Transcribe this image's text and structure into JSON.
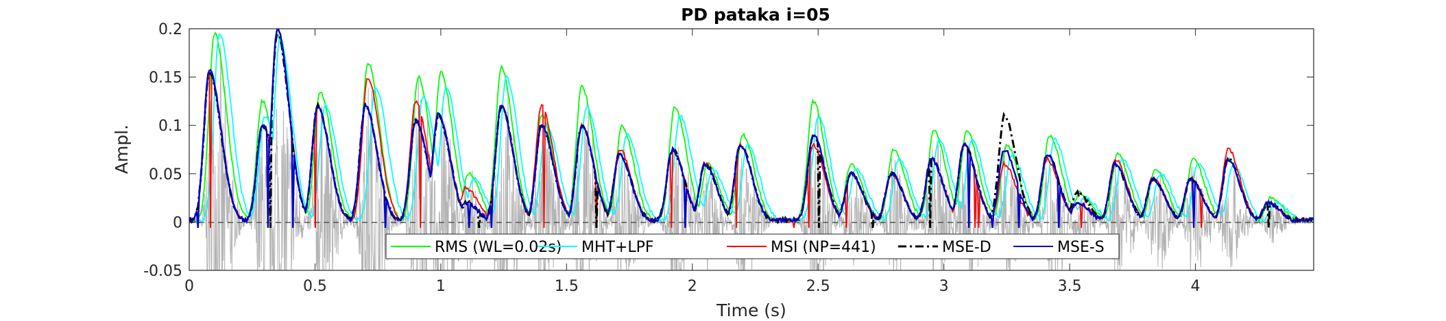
{
  "chart_data": {
    "type": "line",
    "title": "PD pataka i=05",
    "xlabel": "Time (s)",
    "ylabel": "Ampl.",
    "xlim": [
      0,
      4.47
    ],
    "ylim": [
      -0.05,
      0.2
    ],
    "xticks": [
      0,
      0.5,
      1,
      1.5,
      2,
      2.5,
      3,
      3.5,
      4
    ],
    "xtick_labels": [
      "0",
      "0.5",
      "1",
      "1.5",
      "2",
      "2.5",
      "3",
      "3.5",
      "4"
    ],
    "yticks": [
      -0.05,
      0,
      0.05,
      0.1,
      0.15,
      0.2
    ],
    "ytick_labels": [
      "-0.05",
      "0",
      "0.05",
      "0.1",
      "0.15",
      "0.2"
    ],
    "grid": false,
    "legend_location": "bottom-center",
    "zero_line": true,
    "series": [
      {
        "name": "RMS (WL=0.02s)",
        "color": "#00ff00",
        "style": "solid",
        "peaks": [
          [
            0.1,
            0.195
          ],
          [
            0.29,
            0.125
          ],
          [
            0.35,
            0.195
          ],
          [
            0.52,
            0.135
          ],
          [
            0.71,
            0.165
          ],
          [
            0.91,
            0.15
          ],
          [
            1.0,
            0.155
          ],
          [
            1.11,
            0.05
          ],
          [
            1.24,
            0.16
          ],
          [
            1.4,
            0.11
          ],
          [
            1.56,
            0.14
          ],
          [
            1.72,
            0.1
          ],
          [
            1.93,
            0.12
          ],
          [
            2.06,
            0.06
          ],
          [
            2.2,
            0.09
          ],
          [
            2.48,
            0.125
          ],
          [
            2.63,
            0.06
          ],
          [
            2.8,
            0.075
          ],
          [
            2.96,
            0.095
          ],
          [
            3.09,
            0.095
          ],
          [
            3.25,
            0.08
          ],
          [
            3.42,
            0.09
          ],
          [
            3.54,
            0.03
          ],
          [
            3.69,
            0.07
          ],
          [
            3.84,
            0.055
          ],
          [
            3.99,
            0.065
          ],
          [
            4.13,
            0.065
          ],
          [
            4.3,
            0.025
          ]
        ]
      },
      {
        "name": "MHT+LPF",
        "color": "#00ffff",
        "style": "solid",
        "peaks": [
          [
            0.12,
            0.195
          ],
          [
            0.3,
            0.11
          ],
          [
            0.36,
            0.19
          ],
          [
            0.54,
            0.12
          ],
          [
            0.74,
            0.14
          ],
          [
            0.93,
            0.13
          ],
          [
            1.02,
            0.14
          ],
          [
            1.13,
            0.045
          ],
          [
            1.26,
            0.15
          ],
          [
            1.42,
            0.1
          ],
          [
            1.58,
            0.12
          ],
          [
            1.74,
            0.09
          ],
          [
            1.95,
            0.11
          ],
          [
            2.08,
            0.055
          ],
          [
            2.22,
            0.08
          ],
          [
            2.5,
            0.11
          ],
          [
            2.65,
            0.055
          ],
          [
            2.82,
            0.065
          ],
          [
            2.98,
            0.085
          ],
          [
            3.11,
            0.085
          ],
          [
            3.27,
            0.07
          ],
          [
            3.44,
            0.085
          ],
          [
            3.56,
            0.025
          ],
          [
            3.71,
            0.065
          ],
          [
            3.86,
            0.05
          ],
          [
            4.01,
            0.06
          ],
          [
            4.15,
            0.06
          ],
          [
            4.32,
            0.02
          ]
        ]
      },
      {
        "name": "MSI (NP=441)",
        "color": "#ff0000",
        "style": "solid",
        "peaks": [
          [
            0.08,
            0.155
          ],
          [
            0.29,
            0.1
          ],
          [
            0.35,
            0.2
          ],
          [
            0.51,
            0.12
          ],
          [
            0.71,
            0.15
          ],
          [
            0.9,
            0.125
          ],
          [
            0.99,
            0.11
          ],
          [
            1.1,
            0.035
          ],
          [
            1.24,
            0.12
          ],
          [
            1.4,
            0.12
          ],
          [
            1.56,
            0.1
          ],
          [
            1.71,
            0.075
          ],
          [
            1.92,
            0.075
          ],
          [
            2.05,
            0.06
          ],
          [
            2.19,
            0.08
          ],
          [
            2.48,
            0.08
          ],
          [
            2.63,
            0.05
          ],
          [
            2.79,
            0.05
          ],
          [
            2.95,
            0.065
          ],
          [
            3.08,
            0.08
          ],
          [
            3.24,
            0.06
          ],
          [
            3.41,
            0.065
          ],
          [
            3.53,
            0.02
          ],
          [
            3.68,
            0.065
          ],
          [
            3.83,
            0.045
          ],
          [
            3.98,
            0.045
          ],
          [
            4.13,
            0.075
          ],
          [
            4.29,
            0.02
          ]
        ]
      },
      {
        "name": "MSE-D",
        "color": "#000000",
        "style": "dashdot",
        "peaks": [
          [
            0.08,
            0.155
          ],
          [
            0.29,
            0.1
          ],
          [
            0.35,
            0.195
          ],
          [
            0.51,
            0.12
          ],
          [
            0.7,
            0.12
          ],
          [
            0.9,
            0.105
          ],
          [
            0.99,
            0.11
          ],
          [
            1.1,
            0.02
          ],
          [
            1.24,
            0.12
          ],
          [
            1.4,
            0.1
          ],
          [
            1.56,
            0.1
          ],
          [
            1.71,
            0.07
          ],
          [
            1.92,
            0.075
          ],
          [
            2.05,
            0.06
          ],
          [
            2.19,
            0.08
          ],
          [
            2.48,
            0.09
          ],
          [
            2.63,
            0.05
          ],
          [
            2.79,
            0.05
          ],
          [
            2.95,
            0.065
          ],
          [
            3.08,
            0.08
          ],
          [
            3.24,
            0.11
          ],
          [
            3.41,
            0.07
          ],
          [
            3.53,
            0.03
          ],
          [
            3.68,
            0.06
          ],
          [
            3.83,
            0.045
          ],
          [
            3.98,
            0.045
          ],
          [
            4.13,
            0.065
          ],
          [
            4.29,
            0.02
          ]
        ]
      },
      {
        "name": "MSE-S",
        "color": "#0000cc",
        "style": "solid",
        "peaks": [
          [
            0.08,
            0.158
          ],
          [
            0.29,
            0.1
          ],
          [
            0.35,
            0.2
          ],
          [
            0.51,
            0.12
          ],
          [
            0.7,
            0.12
          ],
          [
            0.9,
            0.105
          ],
          [
            0.99,
            0.112
          ],
          [
            1.1,
            0.02
          ],
          [
            1.24,
            0.12
          ],
          [
            1.4,
            0.1
          ],
          [
            1.56,
            0.1
          ],
          [
            1.71,
            0.07
          ],
          [
            1.92,
            0.075
          ],
          [
            2.05,
            0.06
          ],
          [
            2.19,
            0.08
          ],
          [
            2.48,
            0.09
          ],
          [
            2.63,
            0.05
          ],
          [
            2.79,
            0.05
          ],
          [
            2.95,
            0.065
          ],
          [
            3.08,
            0.08
          ],
          [
            3.24,
            0.075
          ],
          [
            3.41,
            0.07
          ],
          [
            3.53,
            0.02
          ],
          [
            3.68,
            0.06
          ],
          [
            3.83,
            0.045
          ],
          [
            3.98,
            0.045
          ],
          [
            4.13,
            0.065
          ],
          [
            4.29,
            0.02
          ]
        ]
      }
    ],
    "waveform": {
      "color": "#b3b3b3",
      "description_values": "speech signal, amplitude range -0.05 to 0.2"
    }
  }
}
